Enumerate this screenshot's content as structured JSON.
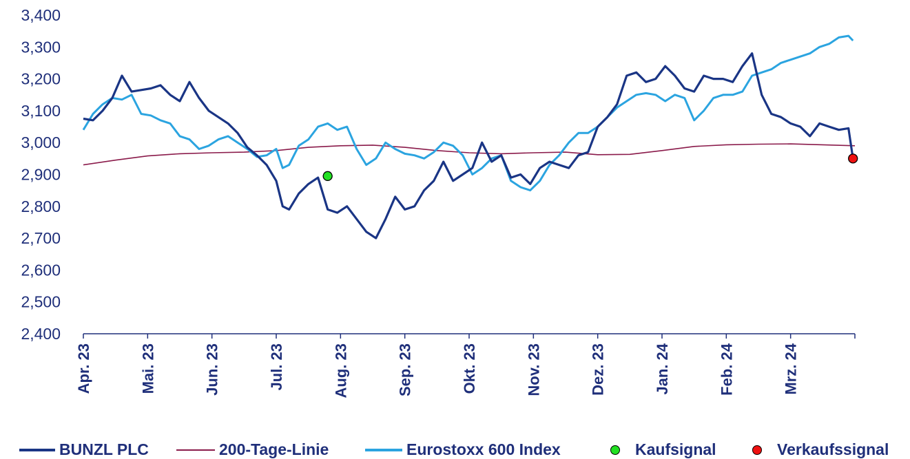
{
  "chart_data": {
    "type": "line",
    "title": "",
    "xlabel": "",
    "ylabel": "",
    "ylim": [
      2400,
      3400
    ],
    "yticks": [
      "3,400",
      "3,300",
      "3,200",
      "3,100",
      "3,000",
      "2,900",
      "2,800",
      "2,700",
      "2,600",
      "2,500",
      "2,400"
    ],
    "ytick_values": [
      3400,
      3300,
      3200,
      3100,
      3000,
      2900,
      2800,
      2700,
      2600,
      2500,
      2400
    ],
    "x_range": [
      0,
      12
    ],
    "xticks": [
      "Apr. 23",
      "Mai. 23",
      "Jun. 23",
      "Jul. 23",
      "Aug. 23",
      "Sep. 23",
      "Okt. 23",
      "Nov. 23",
      "Dez. 23",
      "Jan. 24",
      "Feb. 24",
      "Mrz. 24"
    ],
    "grid": false,
    "legend_position": "bottom",
    "series": [
      {
        "name": "BUNZL PLC",
        "color": "#1a3585",
        "x": [
          0,
          0.15,
          0.3,
          0.45,
          0.6,
          0.75,
          0.9,
          1.05,
          1.2,
          1.35,
          1.5,
          1.65,
          1.8,
          1.95,
          2.1,
          2.25,
          2.4,
          2.55,
          2.7,
          2.85,
          3.0,
          3.1,
          3.2,
          3.35,
          3.5,
          3.65,
          3.8,
          3.95,
          4.1,
          4.25,
          4.4,
          4.55,
          4.7,
          4.85,
          5.0,
          5.15,
          5.3,
          5.45,
          5.6,
          5.75,
          5.9,
          6.05,
          6.2,
          6.35,
          6.5,
          6.65,
          6.8,
          6.95,
          7.1,
          7.25,
          7.4,
          7.55,
          7.7,
          7.85,
          8.0,
          8.15,
          8.3,
          8.45,
          8.6,
          8.75,
          8.9,
          9.05,
          9.2,
          9.35,
          9.5,
          9.65,
          9.8,
          9.95,
          10.1,
          10.25,
          10.4,
          10.55,
          10.7,
          10.85,
          11.0,
          11.15,
          11.3,
          11.45,
          11.6,
          11.75,
          11.9,
          11.97
        ],
        "values": [
          3075,
          3070,
          3100,
          3140,
          3210,
          3160,
          3165,
          3170,
          3180,
          3150,
          3130,
          3190,
          3140,
          3100,
          3080,
          3060,
          3030,
          2985,
          2960,
          2930,
          2880,
          2800,
          2790,
          2840,
          2870,
          2890,
          2790,
          2780,
          2800,
          2760,
          2720,
          2700,
          2760,
          2830,
          2790,
          2800,
          2850,
          2880,
          2940,
          2880,
          2900,
          2920,
          3000,
          2940,
          2960,
          2890,
          2900,
          2870,
          2920,
          2940,
          2930,
          2920,
          2960,
          2970,
          3050,
          3080,
          3120,
          3210,
          3220,
          3190,
          3200,
          3240,
          3210,
          3170,
          3160,
          3210,
          3200,
          3200,
          3190,
          3240,
          3280,
          3150,
          3090,
          3080,
          3060,
          3050,
          3020,
          3060,
          3050,
          3040,
          3045,
          2950
        ]
      },
      {
        "name": "200-Tage-Linie",
        "color": "#8a1a4a",
        "x": [
          0,
          0.5,
          1.0,
          1.5,
          2.0,
          2.5,
          3.0,
          3.5,
          4.0,
          4.5,
          5.0,
          5.5,
          6.0,
          6.5,
          7.0,
          7.5,
          8.0,
          8.5,
          9.0,
          9.5,
          10.0,
          10.5,
          11.0,
          11.5,
          12.0
        ],
        "values": [
          2930,
          2945,
          2958,
          2965,
          2968,
          2970,
          2975,
          2985,
          2990,
          2992,
          2985,
          2975,
          2968,
          2965,
          2968,
          2970,
          2962,
          2963,
          2975,
          2988,
          2993,
          2995,
          2996,
          2993,
          2990
        ]
      },
      {
        "name": "Eurostoxx 600 Index",
        "color": "#2ba4e0",
        "x": [
          0,
          0.15,
          0.3,
          0.45,
          0.6,
          0.75,
          0.9,
          1.05,
          1.2,
          1.35,
          1.5,
          1.65,
          1.8,
          1.95,
          2.1,
          2.25,
          2.4,
          2.55,
          2.7,
          2.85,
          3.0,
          3.1,
          3.2,
          3.35,
          3.5,
          3.65,
          3.8,
          3.95,
          4.1,
          4.25,
          4.4,
          4.55,
          4.7,
          4.85,
          5.0,
          5.15,
          5.3,
          5.45,
          5.6,
          5.75,
          5.9,
          6.05,
          6.2,
          6.35,
          6.5,
          6.65,
          6.8,
          6.95,
          7.1,
          7.25,
          7.4,
          7.55,
          7.7,
          7.85,
          8.0,
          8.15,
          8.3,
          8.45,
          8.6,
          8.75,
          8.9,
          9.05,
          9.2,
          9.35,
          9.5,
          9.65,
          9.8,
          9.95,
          10.1,
          10.25,
          10.4,
          10.55,
          10.7,
          10.85,
          11.0,
          11.15,
          11.3,
          11.45,
          11.6,
          11.75,
          11.9,
          11.97
        ],
        "values": [
          3040,
          3090,
          3120,
          3140,
          3135,
          3150,
          3090,
          3085,
          3070,
          3060,
          3020,
          3010,
          2980,
          2990,
          3010,
          3020,
          3000,
          2980,
          2955,
          2960,
          2980,
          2920,
          2930,
          2990,
          3010,
          3050,
          3060,
          3040,
          3050,
          2980,
          2930,
          2950,
          3000,
          2980,
          2965,
          2960,
          2950,
          2970,
          3000,
          2990,
          2960,
          2900,
          2920,
          2950,
          2960,
          2880,
          2860,
          2850,
          2880,
          2930,
          2960,
          3000,
          3030,
          3030,
          3050,
          3080,
          3110,
          3130,
          3150,
          3155,
          3150,
          3130,
          3150,
          3140,
          3070,
          3100,
          3140,
          3150,
          3150,
          3160,
          3210,
          3220,
          3230,
          3250,
          3260,
          3270,
          3280,
          3300,
          3310,
          3330,
          3335,
          3320
        ]
      }
    ],
    "signals": [
      {
        "name": "Kaufsignal",
        "color": "#22e022",
        "x": 3.8,
        "value": 2895
      },
      {
        "name": "Verkaufssignal",
        "color": "#ee1111",
        "x": 11.97,
        "value": 2950
      }
    ]
  },
  "legend": {
    "items": [
      {
        "label": "BUNZL PLC",
        "color": "#1a3585",
        "kind": "line"
      },
      {
        "label": "200-Tage-Linie",
        "color": "#8a1a4a",
        "kind": "thin-line"
      },
      {
        "label": "Eurostoxx 600 Index",
        "color": "#2ba4e0",
        "kind": "line"
      },
      {
        "label": "Kaufsignal",
        "color": "#22e022",
        "kind": "dot"
      },
      {
        "label": "Verkaufssignal",
        "color": "#ee1111",
        "kind": "dot"
      }
    ]
  }
}
